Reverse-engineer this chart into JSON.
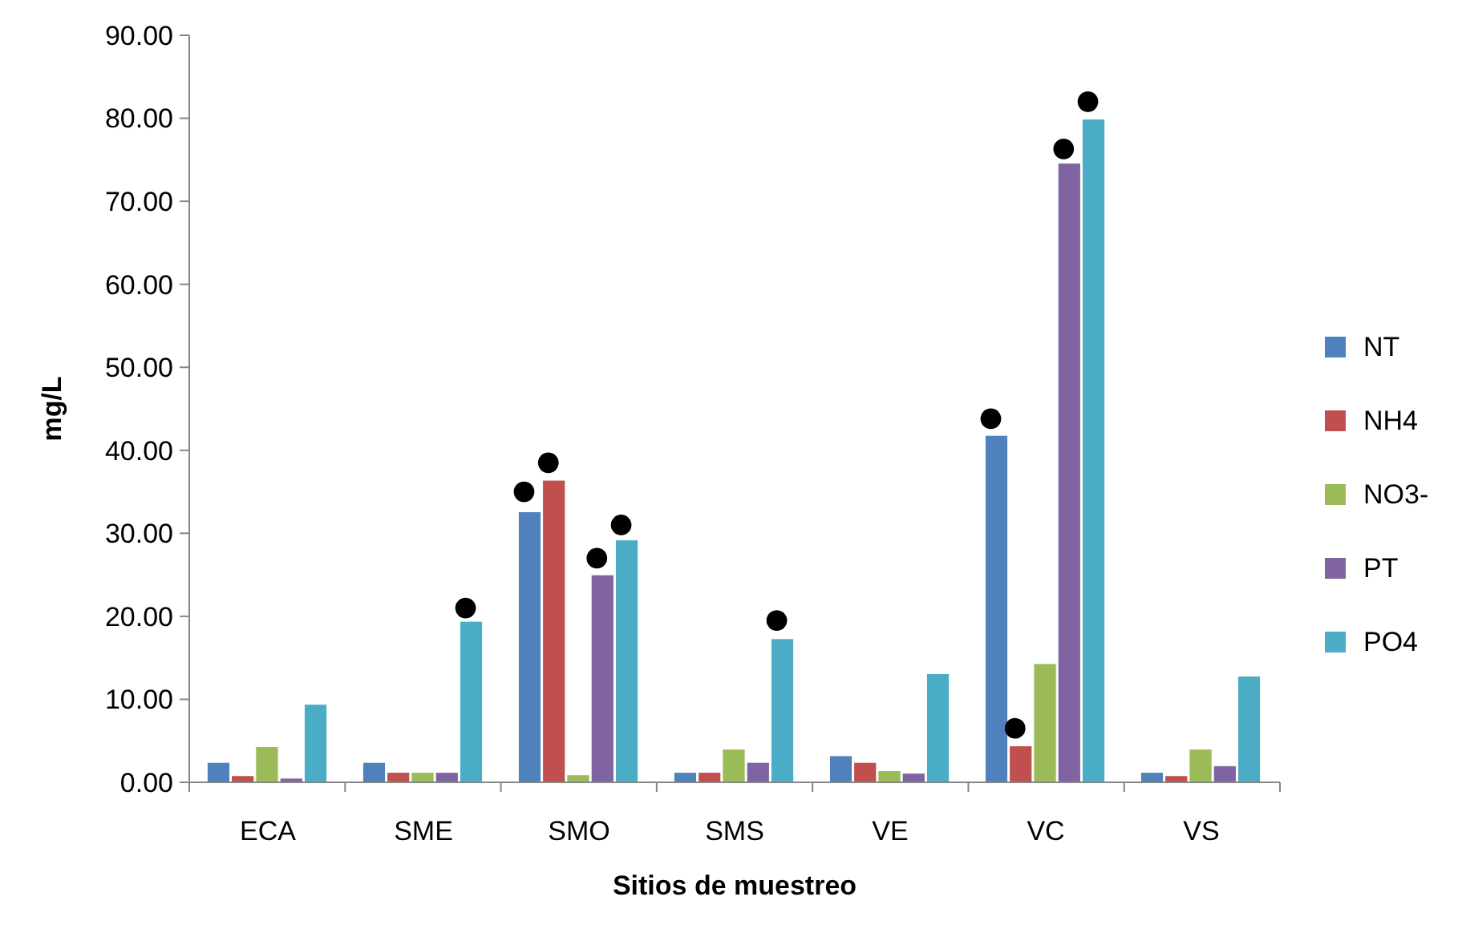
{
  "chart_data": {
    "type": "bar",
    "xlabel": "Sitios de muestreo",
    "ylabel": "mg/L",
    "categories": [
      "ECA",
      "SME",
      "SMO",
      "SMS",
      "VE",
      "VC",
      "VS"
    ],
    "series": [
      {
        "name": "NT",
        "color": "#4f81bd",
        "values": [
          2.4,
          2.4,
          32.6,
          1.2,
          3.2,
          41.8,
          1.2
        ]
      },
      {
        "name": "NH4",
        "color": "#c0504d",
        "values": [
          0.8,
          1.2,
          36.4,
          1.2,
          2.4,
          4.4,
          0.8
        ]
      },
      {
        "name": "NO3-",
        "color": "#9bbb59",
        "values": [
          4.3,
          1.2,
          0.9,
          4.0,
          1.4,
          14.3,
          4.0
        ]
      },
      {
        "name": "PT",
        "color": "#8064a2",
        "values": [
          0.5,
          1.2,
          25.0,
          2.4,
          1.1,
          74.6,
          2.0
        ]
      },
      {
        "name": "PO4",
        "color": "#4bacc6",
        "values": [
          9.4,
          19.4,
          29.2,
          17.3,
          13.1,
          79.9,
          12.8
        ]
      },
      {
        "type": "scatter",
        "color": "#000000",
        "values": [
          null,
          null,
          35.0,
          null,
          null,
          43.8,
          null
        ]
      },
      {
        "type": "scatter",
        "color": "#000000",
        "values": [
          null,
          null,
          38.5,
          null,
          null,
          6.5,
          null
        ]
      },
      {
        "type": "scatter",
        "color": "#000000",
        "values": [
          null,
          null,
          27.0,
          null,
          null,
          76.3,
          null
        ]
      },
      {
        "type": "scatter",
        "color": "#000000",
        "values": [
          null,
          21.0,
          31.0,
          19.5,
          null,
          82.0,
          null
        ]
      }
    ],
    "ylim": [
      0,
      90
    ],
    "yticks": [
      {
        "value": 0,
        "label": "0.00"
      },
      {
        "value": 10,
        "label": "10.00"
      },
      {
        "value": 20,
        "label": "20.00"
      },
      {
        "value": 30,
        "label": "30.00"
      },
      {
        "value": 40,
        "label": "40.00"
      },
      {
        "value": 50,
        "label": "50.00"
      },
      {
        "value": 60,
        "label": "60.00"
      },
      {
        "value": 70,
        "label": "70.00"
      },
      {
        "value": 80,
        "label": "80.00"
      },
      {
        "value": 90,
        "label": "90.00"
      }
    ],
    "grid": false,
    "legend": "right",
    "marker": "circle"
  }
}
